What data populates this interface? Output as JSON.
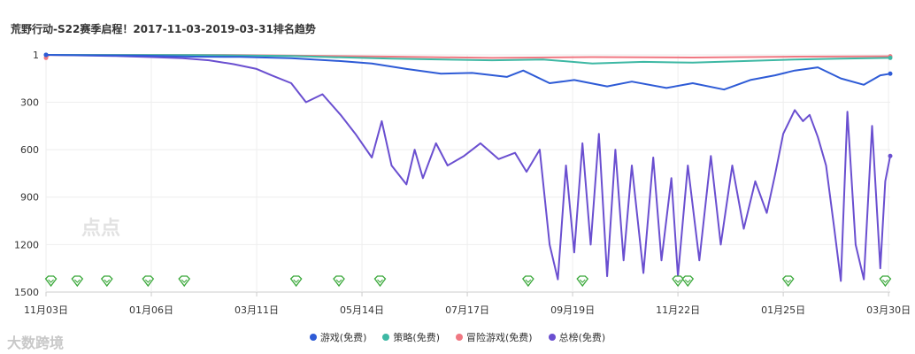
{
  "chart_data": {
    "type": "line",
    "title": "荒野行动-S22赛季启程！2017-11-03-2019-03-31排名趋势",
    "y_axis": {
      "inverted": true,
      "ylim": [
        1,
        1500
      ],
      "tick_labels": [
        "1",
        "300",
        "600",
        "900",
        "1200",
        "1500"
      ],
      "tick_values": [
        1,
        300,
        600,
        900,
        1200,
        1500
      ]
    },
    "x_axis": {
      "tick_labels": [
        "11月03日",
        "01月06日",
        "03月11日",
        "05月14日",
        "07月17日",
        "09月19日",
        "11月22日",
        "01月25日",
        "03月30日"
      ],
      "tick_dates": [
        "2017-11-03",
        "2018-01-06",
        "2018-03-11",
        "2018-05-14",
        "2018-07-17",
        "2018-09-19",
        "2018-11-22",
        "2019-01-25",
        "2019-03-30"
      ],
      "range": [
        "2017-11-03",
        "2019-03-31"
      ]
    },
    "grid": true,
    "legend_position": "bottom-center",
    "series": [
      {
        "name": "游戏(免费)",
        "color": "#2e5bd6",
        "points": [
          [
            "2017-11-03",
            1
          ],
          [
            "2017-12-01",
            4
          ],
          [
            "2018-01-01",
            6
          ],
          [
            "2018-02-01",
            12
          ],
          [
            "2018-03-01",
            14
          ],
          [
            "2018-04-01",
            22
          ],
          [
            "2018-05-01",
            40
          ],
          [
            "2018-05-20",
            55
          ],
          [
            "2018-06-10",
            90
          ],
          [
            "2018-07-01",
            120
          ],
          [
            "2018-07-20",
            115
          ],
          [
            "2018-08-10",
            140
          ],
          [
            "2018-08-20",
            100
          ],
          [
            "2018-09-05",
            180
          ],
          [
            "2018-09-20",
            160
          ],
          [
            "2018-10-10",
            200
          ],
          [
            "2018-10-25",
            170
          ],
          [
            "2018-11-15",
            210
          ],
          [
            "2018-12-01",
            180
          ],
          [
            "2018-12-20",
            220
          ],
          [
            "2019-01-05",
            160
          ],
          [
            "2019-01-20",
            130
          ],
          [
            "2019-02-01",
            100
          ],
          [
            "2019-02-15",
            80
          ],
          [
            "2019-03-01",
            150
          ],
          [
            "2019-03-15",
            190
          ],
          [
            "2019-03-25",
            130
          ],
          [
            "2019-03-31",
            120
          ]
        ]
      },
      {
        "name": "策略(免费)",
        "color": "#3eb8a4",
        "points": [
          [
            "2017-11-03",
            1
          ],
          [
            "2018-02-01",
            2
          ],
          [
            "2018-04-01",
            8
          ],
          [
            "2018-06-01",
            25
          ],
          [
            "2018-08-01",
            35
          ],
          [
            "2018-09-01",
            30
          ],
          [
            "2018-10-01",
            55
          ],
          [
            "2018-11-01",
            45
          ],
          [
            "2018-12-01",
            50
          ],
          [
            "2019-01-01",
            40
          ],
          [
            "2019-02-01",
            30
          ],
          [
            "2019-03-01",
            25
          ],
          [
            "2019-03-31",
            20
          ]
        ]
      },
      {
        "name": "冒险游戏(免费)",
        "color": "#f07882",
        "points": [
          [
            "2017-11-03",
            20
          ],
          [
            "2017-11-05",
            1
          ],
          [
            "2018-03-01",
            2
          ],
          [
            "2018-06-01",
            12
          ],
          [
            "2018-08-01",
            20
          ],
          [
            "2018-10-01",
            15
          ],
          [
            "2018-12-01",
            18
          ],
          [
            "2019-02-01",
            12
          ],
          [
            "2019-03-31",
            10
          ]
        ]
      },
      {
        "name": "总榜(免费)",
        "color": "#6a4fd0",
        "points": [
          [
            "2017-11-03",
            1
          ],
          [
            "2017-11-20",
            4
          ],
          [
            "2017-12-15",
            8
          ],
          [
            "2018-01-06",
            15
          ],
          [
            "2018-01-25",
            22
          ],
          [
            "2018-02-10",
            35
          ],
          [
            "2018-02-25",
            60
          ],
          [
            "2018-03-11",
            90
          ],
          [
            "2018-03-20",
            130
          ],
          [
            "2018-04-01",
            180
          ],
          [
            "2018-04-10",
            300
          ],
          [
            "2018-04-20",
            250
          ],
          [
            "2018-05-01",
            380
          ],
          [
            "2018-05-10",
            500
          ],
          [
            "2018-05-20",
            650
          ],
          [
            "2018-05-26",
            420
          ],
          [
            "2018-06-01",
            700
          ],
          [
            "2018-06-10",
            820
          ],
          [
            "2018-06-15",
            600
          ],
          [
            "2018-06-20",
            780
          ],
          [
            "2018-06-28",
            560
          ],
          [
            "2018-07-05",
            700
          ],
          [
            "2018-07-15",
            640
          ],
          [
            "2018-07-25",
            560
          ],
          [
            "2018-08-05",
            660
          ],
          [
            "2018-08-15",
            620
          ],
          [
            "2018-08-22",
            740
          ],
          [
            "2018-08-30",
            600
          ],
          [
            "2018-09-05",
            1200
          ],
          [
            "2018-09-10",
            1420
          ],
          [
            "2018-09-15",
            700
          ],
          [
            "2018-09-20",
            1250
          ],
          [
            "2018-09-25",
            560
          ],
          [
            "2018-09-30",
            1200
          ],
          [
            "2018-10-05",
            500
          ],
          [
            "2018-10-10",
            1400
          ],
          [
            "2018-10-15",
            600
          ],
          [
            "2018-10-20",
            1300
          ],
          [
            "2018-10-25",
            700
          ],
          [
            "2018-11-01",
            1380
          ],
          [
            "2018-11-07",
            650
          ],
          [
            "2018-11-12",
            1300
          ],
          [
            "2018-11-18",
            780
          ],
          [
            "2018-11-22",
            1400
          ],
          [
            "2018-11-28",
            700
          ],
          [
            "2018-12-05",
            1300
          ],
          [
            "2018-12-12",
            640
          ],
          [
            "2018-12-18",
            1200
          ],
          [
            "2018-12-25",
            700
          ],
          [
            "2019-01-01",
            1100
          ],
          [
            "2019-01-08",
            800
          ],
          [
            "2019-01-15",
            1000
          ],
          [
            "2019-01-20",
            760
          ],
          [
            "2019-01-25",
            500
          ],
          [
            "2019-02-01",
            350
          ],
          [
            "2019-02-06",
            420
          ],
          [
            "2019-02-10",
            380
          ],
          [
            "2019-02-15",
            520
          ],
          [
            "2019-02-20",
            700
          ],
          [
            "2019-02-25",
            1100
          ],
          [
            "2019-03-01",
            1430
          ],
          [
            "2019-03-05",
            360
          ],
          [
            "2019-03-10",
            1200
          ],
          [
            "2019-03-15",
            1420
          ],
          [
            "2019-03-20",
            450
          ],
          [
            "2019-03-25",
            1350
          ],
          [
            "2019-03-28",
            800
          ],
          [
            "2019-03-31",
            640
          ]
        ]
      }
    ],
    "event_markers": {
      "color": "#3aa83a",
      "dates": [
        "2017-11-06",
        "2017-11-22",
        "2017-12-10",
        "2018-01-04",
        "2018-01-26",
        "2018-04-04",
        "2018-04-30",
        "2018-05-25",
        "2018-08-23",
        "2018-09-25",
        "2018-11-22",
        "2018-11-28",
        "2019-01-28",
        "2019-03-28"
      ]
    }
  },
  "legend": {
    "items": [
      {
        "label": "游戏(免费)",
        "color": "#2e5bd6"
      },
      {
        "label": "策略(免费)",
        "color": "#3eb8a4"
      },
      {
        "label": "冒险游戏(免费)",
        "color": "#f07882"
      },
      {
        "label": "总榜(免费)",
        "color": "#6a4fd0"
      }
    ]
  },
  "watermark": {
    "text": "大数跨境",
    "logo_text": "点点"
  }
}
